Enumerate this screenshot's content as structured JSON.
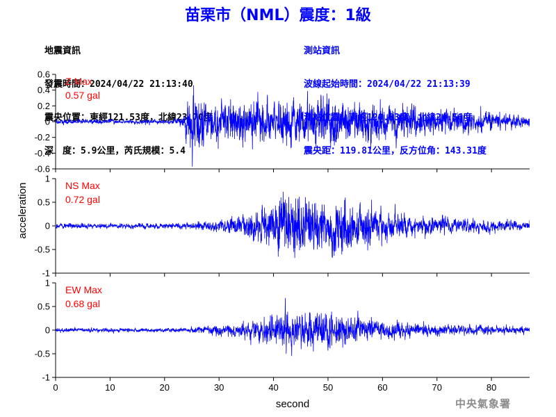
{
  "title": "苗栗市（NML）震度：1級",
  "quake_info": {
    "heading": "地震資訊",
    "origin_time": "發震時間：2024/04/22 21:13:40",
    "epicenter": "震央位置：東經121.53度，北緯23.70度",
    "depth_magnitude": "深　度：5.9公里，芮氏規模：5.4"
  },
  "station_info": {
    "heading": "測站資訊",
    "wave_start": "波線起始時間：2024/04/22 21:13:39",
    "location": "測站位置：東經120.83度，北緯24.56度",
    "distance": "震央距：119.81公里，反方位角：143.31度"
  },
  "credit": "中央氣象署",
  "colors": {
    "trace": "#0000ff",
    "title": "#0000ff",
    "label": "#ff0000",
    "axis": "#000000"
  },
  "chart_data": [
    {
      "type": "line",
      "component": "Z",
      "label_name": "Z Max",
      "label_value": "0.57 gal",
      "max_abs": 0.57,
      "x_range": [
        0,
        87
      ],
      "ylim": [
        -0.6,
        0.6
      ],
      "yticks": [
        -0.6,
        -0.4,
        -0.2,
        0,
        0.2,
        0.4,
        0.6
      ],
      "ytick_labels": [
        "-0.6",
        "-0.4",
        "-0.2",
        "0",
        "0.2",
        "0.4",
        "0.6"
      ],
      "envelope": {
        "x": [
          0,
          10,
          20,
          23,
          24,
          25,
          26,
          30,
          35,
          40,
          45,
          50,
          55,
          60,
          65,
          70,
          75,
          80,
          85,
          87
        ],
        "amplitude": [
          0.03,
          0.03,
          0.03,
          0.04,
          0.2,
          0.42,
          0.32,
          0.22,
          0.24,
          0.26,
          0.28,
          0.3,
          0.27,
          0.24,
          0.2,
          0.16,
          0.13,
          0.11,
          0.08,
          0.06
        ]
      }
    },
    {
      "type": "line",
      "component": "NS",
      "label_name": "NS Max",
      "label_value": "0.72 gal",
      "max_abs": 0.72,
      "x_range": [
        0,
        87
      ],
      "ylim": [
        -1,
        1
      ],
      "yticks": [
        -1,
        -0.5,
        0,
        0.5,
        1
      ],
      "ytick_labels": [
        "-1",
        "-0.5",
        "0",
        "0.5",
        "1"
      ],
      "envelope": {
        "x": [
          0,
          10,
          20,
          24,
          27,
          30,
          35,
          38,
          42,
          45,
          50,
          52,
          55,
          60,
          65,
          70,
          75,
          80,
          85,
          87
        ],
        "amplitude": [
          0.05,
          0.05,
          0.05,
          0.05,
          0.08,
          0.12,
          0.2,
          0.38,
          0.6,
          0.5,
          0.42,
          0.6,
          0.4,
          0.3,
          0.22,
          0.18,
          0.14,
          0.12,
          0.1,
          0.08
        ]
      }
    },
    {
      "type": "line",
      "component": "EW",
      "label_name": "EW Max",
      "label_value": "0.68 gal",
      "max_abs": 0.68,
      "x_range": [
        0,
        87
      ],
      "ylim": [
        -1,
        1
      ],
      "yticks": [
        -1,
        -0.5,
        0,
        0.5,
        1
      ],
      "ytick_labels": [
        "-1",
        "-0.5",
        "0",
        "0.5",
        "1"
      ],
      "envelope": {
        "x": [
          0,
          10,
          20,
          24,
          27,
          30,
          35,
          38,
          40,
          42,
          45,
          48,
          50,
          52,
          55,
          60,
          65,
          70,
          75,
          80,
          85,
          87
        ],
        "amplitude": [
          0.07,
          0.07,
          0.07,
          0.08,
          0.12,
          0.18,
          0.24,
          0.35,
          0.48,
          0.66,
          0.5,
          0.62,
          0.6,
          0.5,
          0.42,
          0.3,
          0.24,
          0.2,
          0.16,
          0.14,
          0.12,
          0.1
        ]
      }
    }
  ],
  "x_axis": {
    "label": "second",
    "range": [
      0,
      87
    ],
    "ticks": [
      0,
      10,
      20,
      30,
      40,
      50,
      60,
      70,
      80
    ],
    "tick_labels": [
      "0",
      "10",
      "20",
      "30",
      "40",
      "50",
      "60",
      "70",
      "80"
    ]
  },
  "y_axis": {
    "label": "acceleration"
  }
}
